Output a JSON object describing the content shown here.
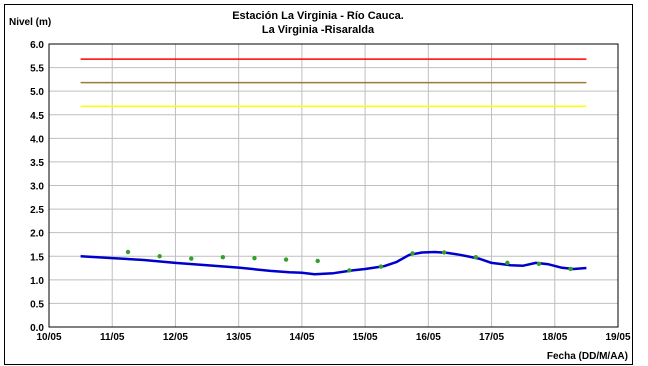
{
  "chart_data": {
    "type": "line",
    "title": "Estación La Virginia  - Río Cauca.",
    "subtitle": "La Virginia -Risaralda",
    "ylabel": "Nivel (m)",
    "xlabel": "Fecha (DD/M/AA)",
    "xlim": [
      0,
      9
    ],
    "ylim": [
      0.0,
      6.0
    ],
    "x_tick_labels": [
      "10/05",
      "11/05",
      "12/05",
      "13/05",
      "14/05",
      "15/05",
      "16/05",
      "17/05",
      "18/05",
      "19/05"
    ],
    "y_tick_labels": [
      "0.0",
      "0.5",
      "1.0",
      "1.5",
      "2.0",
      "2.5",
      "3.0",
      "3.5",
      "4.0",
      "4.5",
      "5.0",
      "5.5",
      "6.0"
    ],
    "y_ticks": [
      0.0,
      0.5,
      1.0,
      1.5,
      2.0,
      2.5,
      3.0,
      3.5,
      4.0,
      4.5,
      5.0,
      5.5,
      6.0
    ],
    "grid": true,
    "reference_lines": [
      {
        "y": 5.68,
        "x_range": [
          0.5,
          8.5
        ],
        "color": "#ff0000"
      },
      {
        "y": 5.18,
        "x_range": [
          0.5,
          8.5
        ],
        "color": "#9c7a3c"
      },
      {
        "y": 4.68,
        "x_range": [
          0.5,
          8.5
        ],
        "color": "#ffff00"
      }
    ],
    "series": [
      {
        "type": "line",
        "color": "#0000cc",
        "x": [
          0.5,
          1.0,
          1.5,
          2.0,
          2.5,
          3.0,
          3.5,
          3.8,
          4.0,
          4.2,
          4.5,
          4.8,
          5.0,
          5.3,
          5.5,
          5.7,
          5.9,
          6.1,
          6.3,
          6.5,
          6.8,
          7.0,
          7.3,
          7.5,
          7.7,
          7.9,
          8.1,
          8.3,
          8.5
        ],
        "y": [
          1.5,
          1.46,
          1.42,
          1.36,
          1.31,
          1.26,
          1.19,
          1.16,
          1.15,
          1.12,
          1.14,
          1.2,
          1.23,
          1.29,
          1.38,
          1.53,
          1.58,
          1.59,
          1.57,
          1.53,
          1.45,
          1.36,
          1.31,
          1.3,
          1.36,
          1.33,
          1.26,
          1.23,
          1.25
        ]
      },
      {
        "type": "scatter",
        "color": "#33a02c",
        "x": [
          1.25,
          1.75,
          2.25,
          2.75,
          3.25,
          3.75,
          4.25,
          4.75,
          5.25,
          5.75,
          6.25,
          6.75,
          7.25,
          7.75,
          8.25
        ],
        "y": [
          1.59,
          1.5,
          1.45,
          1.48,
          1.46,
          1.43,
          1.4,
          1.2,
          1.28,
          1.56,
          1.58,
          1.48,
          1.36,
          1.34,
          1.23
        ]
      }
    ]
  }
}
